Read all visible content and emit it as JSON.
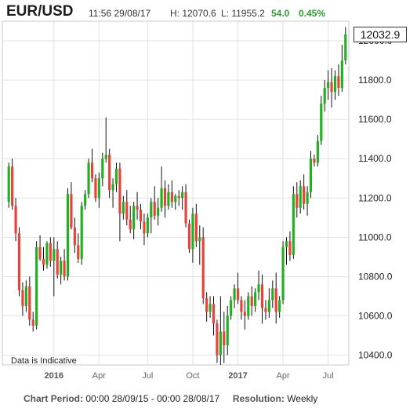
{
  "header": {
    "symbol": "EUR/USD",
    "datetime": "11:56 29/08/17",
    "high": "H: 12070.6",
    "low": "L: 11955.2",
    "change": "54.0",
    "change_pct": "0.45%",
    "up_color": "#2ca02c"
  },
  "last_price": "12032.9",
  "indicative_note": "Data is Indicative",
  "footer": {
    "period_label": "Chart Period:",
    "period_value": "00:00 28/09/15 - 00:00 28/08/17",
    "resolution_label": "Resolution:",
    "resolution_value": "Weekly"
  },
  "chart_data": {
    "type": "candlestick",
    "title": "EUR/USD",
    "resolution": "weekly",
    "ylim": [
      10350,
      12100
    ],
    "y_ticks": [
      "10400.0",
      "10600.0",
      "10800.0",
      "11000.0",
      "11200.0",
      "11400.0",
      "11600.0",
      "11800.0",
      "12000.0"
    ],
    "y_tick_values": [
      10400,
      10600,
      10800,
      11000,
      11200,
      11400,
      11600,
      11800,
      12000
    ],
    "x_ticks": [
      {
        "label": "2016",
        "week": 13,
        "year": true
      },
      {
        "label": "Apr",
        "week": 26,
        "year": false
      },
      {
        "label": "Jul",
        "week": 40,
        "year": false
      },
      {
        "label": "Oct",
        "week": 53,
        "year": false
      },
      {
        "label": "2017",
        "week": 66,
        "year": true
      },
      {
        "label": "Apr",
        "week": 79,
        "year": false
      },
      {
        "label": "Jul",
        "week": 92,
        "year": false
      }
    ],
    "grid": true,
    "bull_color": "#22b022",
    "bear_color": "#e8433a",
    "candles": [
      [
        11180,
        11380,
        11150,
        11360
      ],
      [
        11360,
        11400,
        11140,
        11160
      ],
      [
        11160,
        11200,
        10980,
        11020
      ],
      [
        11020,
        11050,
        10700,
        10730
      ],
      [
        10730,
        10770,
        10600,
        10650
      ],
      [
        10650,
        10780,
        10620,
        10750
      ],
      [
        10750,
        10800,
        10550,
        10580
      ],
      [
        10580,
        10620,
        10520,
        10550
      ],
      [
        10550,
        10980,
        10530,
        10950
      ],
      [
        10950,
        11010,
        10880,
        10890
      ],
      [
        10890,
        10950,
        10830,
        10860
      ],
      [
        10860,
        10980,
        10840,
        10970
      ],
      [
        10970,
        11000,
        10850,
        10880
      ],
      [
        10880,
        11000,
        10700,
        10940
      ],
      [
        10940,
        10980,
        10790,
        10810
      ],
      [
        10810,
        10900,
        10760,
        10880
      ],
      [
        10880,
        10940,
        10780,
        10800
      ],
      [
        10800,
        11250,
        10780,
        11220
      ],
      [
        11220,
        11280,
        11040,
        11050
      ],
      [
        11050,
        11100,
        10920,
        10960
      ],
      [
        10960,
        11020,
        10870,
        10890
      ],
      [
        10890,
        11180,
        10860,
        11160
      ],
      [
        11160,
        11240,
        11140,
        11220
      ],
      [
        11220,
        11400,
        11200,
        11380
      ],
      [
        11380,
        11450,
        11280,
        11300
      ],
      [
        11300,
        11320,
        11180,
        11200
      ],
      [
        11200,
        11330,
        11150,
        11300
      ],
      [
        11300,
        11430,
        11260,
        11400
      ],
      [
        11400,
        11610,
        11380,
        11420
      ],
      [
        11420,
        11450,
        11200,
        11240
      ],
      [
        11240,
        11300,
        11150,
        11270
      ],
      [
        11270,
        11380,
        11230,
        11350
      ],
      [
        11350,
        11380,
        10980,
        11120
      ],
      [
        11120,
        11210,
        11090,
        11180
      ],
      [
        11180,
        11240,
        11060,
        11090
      ],
      [
        11090,
        11160,
        11020,
        11040
      ],
      [
        11040,
        11180,
        10990,
        11160
      ],
      [
        11160,
        11230,
        11090,
        11140
      ],
      [
        11140,
        11170,
        11040,
        11080
      ],
      [
        11080,
        11120,
        10960,
        11020
      ],
      [
        11020,
        11120,
        11000,
        11100
      ],
      [
        11100,
        11200,
        11020,
        11180
      ],
      [
        11180,
        11260,
        11090,
        11110
      ],
      [
        11110,
        11200,
        11060,
        11150
      ],
      [
        11150,
        11360,
        11130,
        11250
      ],
      [
        11250,
        11290,
        11100,
        11160
      ],
      [
        11160,
        11270,
        11140,
        11230
      ],
      [
        11230,
        11290,
        11150,
        11180
      ],
      [
        11180,
        11220,
        11140,
        11210
      ],
      [
        11210,
        11240,
        11160,
        11200
      ],
      [
        11200,
        11260,
        11140,
        11230
      ],
      [
        11230,
        11270,
        11050,
        11070
      ],
      [
        11070,
        11090,
        10920,
        10940
      ],
      [
        10940,
        11150,
        10870,
        11120
      ],
      [
        11120,
        11170,
        10950,
        10980
      ],
      [
        10980,
        11060,
        10860,
        11000
      ],
      [
        11000,
        11050,
        10660,
        10690
      ],
      [
        10690,
        10720,
        10570,
        10620
      ],
      [
        10620,
        10700,
        10590,
        10660
      ],
      [
        10660,
        10700,
        10500,
        10560
      ],
      [
        10560,
        10580,
        10360,
        10400
      ],
      [
        10400,
        10700,
        10350,
        10520
      ],
      [
        10520,
        10620,
        10360,
        10450
      ],
      [
        10450,
        10650,
        10400,
        10600
      ],
      [
        10600,
        10700,
        10580,
        10680
      ],
      [
        10680,
        10760,
        10640,
        10740
      ],
      [
        10740,
        10820,
        10660,
        10680
      ],
      [
        10680,
        10700,
        10580,
        10620
      ],
      [
        10620,
        10680,
        10530,
        10600
      ],
      [
        10600,
        10720,
        10580,
        10700
      ],
      [
        10700,
        10750,
        10600,
        10650
      ],
      [
        10650,
        10740,
        10620,
        10720
      ],
      [
        10720,
        10830,
        10680,
        10760
      ],
      [
        10760,
        10810,
        10560,
        10640
      ],
      [
        10640,
        10680,
        10580,
        10620
      ],
      [
        10620,
        10740,
        10590,
        10680
      ],
      [
        10680,
        10780,
        10640,
        10740
      ],
      [
        10740,
        10820,
        10560,
        10620
      ],
      [
        10620,
        10700,
        10590,
        10680
      ],
      [
        10680,
        10980,
        10660,
        10950
      ],
      [
        10950,
        11000,
        10860,
        10980
      ],
      [
        10980,
        11030,
        10880,
        10910
      ],
      [
        10910,
        11260,
        10890,
        11220
      ],
      [
        11220,
        11280,
        11100,
        11150
      ],
      [
        11150,
        11290,
        11120,
        11260
      ],
      [
        11260,
        11320,
        11140,
        11170
      ],
      [
        11170,
        11260,
        11110,
        11230
      ],
      [
        11230,
        11440,
        11200,
        11400
      ],
      [
        11400,
        11420,
        11360,
        11380
      ],
      [
        11380,
        11520,
        11360,
        11490
      ],
      [
        11490,
        11720,
        11470,
        11680
      ],
      [
        11680,
        11800,
        11640,
        11760
      ],
      [
        11760,
        11850,
        11700,
        11790
      ],
      [
        11790,
        11860,
        11660,
        11740
      ],
      [
        11740,
        11850,
        11700,
        11820
      ],
      [
        11820,
        11880,
        11720,
        11760
      ],
      [
        11760,
        11980,
        11740,
        11900
      ],
      [
        11900,
        12070,
        11880,
        12033
      ]
    ]
  }
}
